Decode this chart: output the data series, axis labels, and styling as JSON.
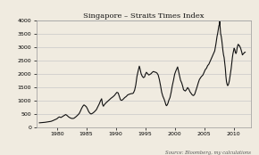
{
  "title": "Singapore – Straits Times Index",
  "source_text": "Source: Bloomberg, my calculations",
  "xlim": [
    1976.5,
    2013
  ],
  "ylim": [
    0,
    4000
  ],
  "yticks": [
    0,
    500,
    1000,
    1500,
    2000,
    2500,
    3000,
    3500,
    4000
  ],
  "xticks": [
    1980,
    1985,
    1990,
    1995,
    2000,
    2005,
    2010
  ],
  "line_color": "#111111",
  "background_color": "#f0ebe0",
  "grid_color": "#c8c8c8",
  "border_color": "#999999",
  "sti_data": [
    [
      1977.0,
      160
    ],
    [
      1977.3,
      165
    ],
    [
      1977.6,
      170
    ],
    [
      1978.0,
      180
    ],
    [
      1978.3,
      190
    ],
    [
      1978.6,
      200
    ],
    [
      1979.0,
      215
    ],
    [
      1979.3,
      240
    ],
    [
      1979.6,
      270
    ],
    [
      1980.0,
      310
    ],
    [
      1980.2,
      350
    ],
    [
      1980.4,
      380
    ],
    [
      1980.7,
      360
    ],
    [
      1981.0,
      400
    ],
    [
      1981.2,
      430
    ],
    [
      1981.5,
      470
    ],
    [
      1981.7,
      440
    ],
    [
      1982.0,
      380
    ],
    [
      1982.3,
      340
    ],
    [
      1982.6,
      320
    ],
    [
      1982.9,
      330
    ],
    [
      1983.2,
      380
    ],
    [
      1983.5,
      440
    ],
    [
      1983.8,
      510
    ],
    [
      1984.0,
      600
    ],
    [
      1984.2,
      700
    ],
    [
      1984.4,
      780
    ],
    [
      1984.6,
      830
    ],
    [
      1984.8,
      800
    ],
    [
      1985.0,
      760
    ],
    [
      1985.2,
      680
    ],
    [
      1985.4,
      580
    ],
    [
      1985.6,
      520
    ],
    [
      1985.8,
      490
    ],
    [
      1986.0,
      510
    ],
    [
      1986.2,
      540
    ],
    [
      1986.4,
      580
    ],
    [
      1986.7,
      650
    ],
    [
      1987.0,
      780
    ],
    [
      1987.2,
      870
    ],
    [
      1987.4,
      980
    ],
    [
      1987.6,
      1060
    ],
    [
      1987.75,
      850
    ],
    [
      1987.9,
      780
    ],
    [
      1988.0,
      820
    ],
    [
      1988.3,
      900
    ],
    [
      1988.6,
      960
    ],
    [
      1988.9,
      1020
    ],
    [
      1989.2,
      1080
    ],
    [
      1989.5,
      1130
    ],
    [
      1989.8,
      1190
    ],
    [
      1990.0,
      1250
    ],
    [
      1990.2,
      1300
    ],
    [
      1990.4,
      1280
    ],
    [
      1990.6,
      1150
    ],
    [
      1990.8,
      1020
    ],
    [
      1991.0,
      1000
    ],
    [
      1991.2,
      1030
    ],
    [
      1991.5,
      1100
    ],
    [
      1991.8,
      1150
    ],
    [
      1992.0,
      1200
    ],
    [
      1992.3,
      1230
    ],
    [
      1992.6,
      1250
    ],
    [
      1992.9,
      1260
    ],
    [
      1993.0,
      1280
    ],
    [
      1993.2,
      1380
    ],
    [
      1993.4,
      1580
    ],
    [
      1993.6,
      1900
    ],
    [
      1993.8,
      2100
    ],
    [
      1994.0,
      2280
    ],
    [
      1994.1,
      2200
    ],
    [
      1994.3,
      2000
    ],
    [
      1994.5,
      1900
    ],
    [
      1994.7,
      1850
    ],
    [
      1994.9,
      1880
    ],
    [
      1995.0,
      1960
    ],
    [
      1995.2,
      2050
    ],
    [
      1995.4,
      2000
    ],
    [
      1995.6,
      1950
    ],
    [
      1995.8,
      1970
    ],
    [
      1996.0,
      2000
    ],
    [
      1996.2,
      2050
    ],
    [
      1996.4,
      2080
    ],
    [
      1996.6,
      2060
    ],
    [
      1996.8,
      2050
    ],
    [
      1997.0,
      2020
    ],
    [
      1997.2,
      1950
    ],
    [
      1997.4,
      1780
    ],
    [
      1997.6,
      1550
    ],
    [
      1997.8,
      1300
    ],
    [
      1998.0,
      1150
    ],
    [
      1998.2,
      1050
    ],
    [
      1998.4,
      920
    ],
    [
      1998.5,
      840
    ],
    [
      1998.6,
      800
    ],
    [
      1998.7,
      820
    ],
    [
      1998.8,
      860
    ],
    [
      1998.9,
      920
    ],
    [
      1999.0,
      1000
    ],
    [
      1999.2,
      1100
    ],
    [
      1999.4,
      1300
    ],
    [
      1999.6,
      1550
    ],
    [
      1999.8,
      1750
    ],
    [
      2000.0,
      1980
    ],
    [
      2000.2,
      2100
    ],
    [
      2000.4,
      2200
    ],
    [
      2000.5,
      2250
    ],
    [
      2000.6,
      2150
    ],
    [
      2000.8,
      1950
    ],
    [
      2001.0,
      1750
    ],
    [
      2001.2,
      1650
    ],
    [
      2001.4,
      1500
    ],
    [
      2001.5,
      1400
    ],
    [
      2001.6,
      1380
    ],
    [
      2001.8,
      1350
    ],
    [
      2002.0,
      1400
    ],
    [
      2002.2,
      1480
    ],
    [
      2002.4,
      1420
    ],
    [
      2002.6,
      1320
    ],
    [
      2002.8,
      1260
    ],
    [
      2003.0,
      1200
    ],
    [
      2003.2,
      1180
    ],
    [
      2003.4,
      1230
    ],
    [
      2003.6,
      1360
    ],
    [
      2003.8,
      1500
    ],
    [
      2004.0,
      1650
    ],
    [
      2004.2,
      1780
    ],
    [
      2004.5,
      1880
    ],
    [
      2004.8,
      1950
    ],
    [
      2005.0,
      2050
    ],
    [
      2005.2,
      2150
    ],
    [
      2005.4,
      2200
    ],
    [
      2005.6,
      2300
    ],
    [
      2005.8,
      2350
    ],
    [
      2006.0,
      2450
    ],
    [
      2006.2,
      2550
    ],
    [
      2006.4,
      2650
    ],
    [
      2006.6,
      2750
    ],
    [
      2006.8,
      2850
    ],
    [
      2007.0,
      3100
    ],
    [
      2007.1,
      3250
    ],
    [
      2007.2,
      3400
    ],
    [
      2007.3,
      3500
    ],
    [
      2007.4,
      3650
    ],
    [
      2007.5,
      3780
    ],
    [
      2007.6,
      3850
    ],
    [
      2007.65,
      3950
    ],
    [
      2007.7,
      3800
    ],
    [
      2007.8,
      3500
    ],
    [
      2007.9,
      3400
    ],
    [
      2008.0,
      3250
    ],
    [
      2008.1,
      3050
    ],
    [
      2008.2,
      2850
    ],
    [
      2008.3,
      2700
    ],
    [
      2008.4,
      2600
    ],
    [
      2008.5,
      2400
    ],
    [
      2008.6,
      2200
    ],
    [
      2008.7,
      1900
    ],
    [
      2008.8,
      1700
    ],
    [
      2008.9,
      1600
    ],
    [
      2009.0,
      1550
    ],
    [
      2009.1,
      1580
    ],
    [
      2009.2,
      1650
    ],
    [
      2009.3,
      1750
    ],
    [
      2009.4,
      1900
    ],
    [
      2009.5,
      2050
    ],
    [
      2009.6,
      2200
    ],
    [
      2009.7,
      2400
    ],
    [
      2009.8,
      2600
    ],
    [
      2009.9,
      2750
    ],
    [
      2010.0,
      2850
    ],
    [
      2010.1,
      2950
    ],
    [
      2010.2,
      2900
    ],
    [
      2010.3,
      2800
    ],
    [
      2010.4,
      2750
    ],
    [
      2010.5,
      2800
    ],
    [
      2010.6,
      2950
    ],
    [
      2010.7,
      3050
    ],
    [
      2010.8,
      3100
    ],
    [
      2010.9,
      3050
    ],
    [
      2011.0,
      3050
    ],
    [
      2011.2,
      2950
    ],
    [
      2011.4,
      2800
    ],
    [
      2011.5,
      2700
    ],
    [
      2011.7,
      2750
    ],
    [
      2011.9,
      2800
    ],
    [
      2012.0,
      2800
    ]
  ]
}
